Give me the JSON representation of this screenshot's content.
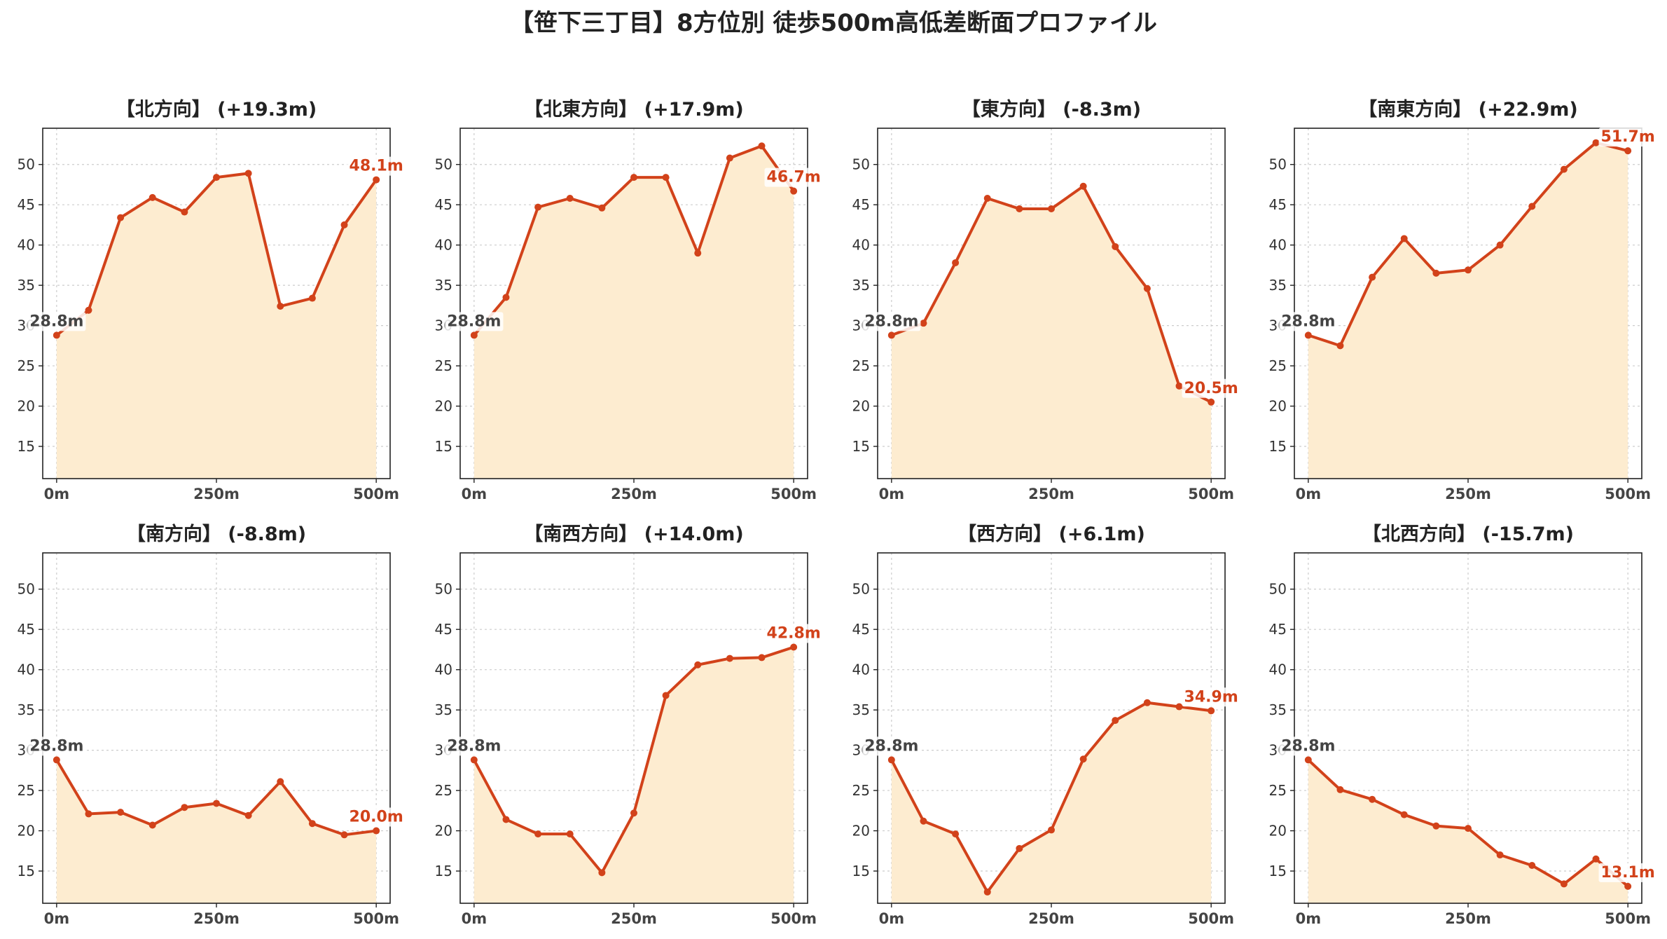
{
  "suptitle": "【笹下三丁目】8方位別 徒歩500m高低差断面プロファイル",
  "colors": {
    "line": "#d2421a",
    "fill": "#fdecd0",
    "grid": "#cccccc",
    "axis": "#222222"
  },
  "chart_data": {
    "type": "area",
    "x": [
      0,
      50,
      100,
      150,
      200,
      250,
      300,
      350,
      400,
      450,
      500
    ],
    "xticks": [
      0,
      250,
      500
    ],
    "xtick_labels": [
      "0m",
      "250m",
      "500m"
    ],
    "xlim": [
      0,
      500
    ],
    "yticks": [
      15,
      20,
      25,
      30,
      35,
      40,
      45,
      50
    ],
    "ylim": [
      11,
      54.5
    ],
    "grid": true,
    "panels": [
      {
        "title": "【北方向】 (+19.3m)",
        "values": [
          28.8,
          31.9,
          43.4,
          45.9,
          44.1,
          48.4,
          48.9,
          32.4,
          33.4,
          42.5,
          48.1
        ],
        "start_label": "28.8m",
        "end_label": "48.1m"
      },
      {
        "title": "【北東方向】 (+17.9m)",
        "values": [
          28.8,
          33.5,
          44.7,
          45.8,
          44.6,
          48.4,
          48.4,
          39.0,
          50.8,
          52.3,
          46.7
        ],
        "start_label": "28.8m",
        "end_label": "46.7m"
      },
      {
        "title": "【東方向】 (-8.3m)",
        "values": [
          28.8,
          30.3,
          37.8,
          45.8,
          44.5,
          44.5,
          47.3,
          39.8,
          34.6,
          22.5,
          20.5
        ],
        "start_label": "28.8m",
        "end_label": "20.5m"
      },
      {
        "title": "【南東方向】 (+22.9m)",
        "values": [
          28.8,
          27.5,
          36.0,
          40.8,
          36.5,
          36.9,
          40.0,
          44.8,
          49.4,
          52.7,
          51.7
        ],
        "start_label": "28.8m",
        "end_label": "51.7m"
      },
      {
        "title": "【南方向】 (-8.8m)",
        "values": [
          28.8,
          22.1,
          22.3,
          20.7,
          22.9,
          23.4,
          21.9,
          26.1,
          20.9,
          19.5,
          20.0
        ],
        "start_label": "28.8m",
        "end_label": "20.0m"
      },
      {
        "title": "【南西方向】 (+14.0m)",
        "values": [
          28.8,
          21.4,
          19.6,
          19.6,
          14.8,
          22.2,
          36.8,
          40.6,
          41.4,
          41.5,
          42.8
        ],
        "start_label": "28.8m",
        "end_label": "42.8m"
      },
      {
        "title": "【西方向】 (+6.1m)",
        "values": [
          28.8,
          21.2,
          19.6,
          12.4,
          17.8,
          20.1,
          28.9,
          33.7,
          35.9,
          35.4,
          34.9
        ],
        "start_label": "28.8m",
        "end_label": "34.9m"
      },
      {
        "title": "【北西方向】 (-15.7m)",
        "values": [
          28.8,
          25.1,
          23.9,
          22.0,
          20.6,
          20.3,
          17.0,
          15.7,
          13.4,
          16.5,
          13.1
        ],
        "start_label": "28.8m",
        "end_label": "13.1m"
      }
    ]
  }
}
